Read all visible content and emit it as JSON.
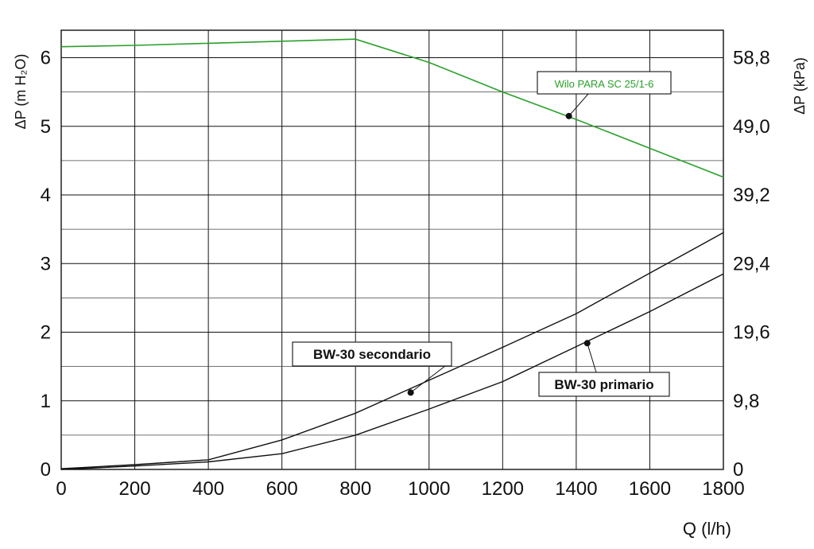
{
  "chart_data": {
    "type": "line",
    "xlabel": "Q (l/h)",
    "ylabel_left": "ΔP (m H₂O)",
    "ylabel_right": "ΔP (kPa)",
    "xlim": [
      0,
      1800
    ],
    "ylim": [
      0,
      6.4
    ],
    "x_ticks": [
      "0",
      "200",
      "400",
      "600",
      "800",
      "1000",
      "1200",
      "1400",
      "1600",
      "1800"
    ],
    "y_ticks_left": [
      "0",
      "1",
      "2",
      "3",
      "4",
      "5",
      "6"
    ],
    "y_ticks_right": [
      "0",
      "9,8",
      "19,6",
      "29,4",
      "39,2",
      "49,0",
      "58,8"
    ],
    "grid": true,
    "series": [
      {
        "name": "Wilo PARA SC 25/1-6",
        "color": "#2aa02a",
        "points": [
          [
            0,
            6.16
          ],
          [
            200,
            6.18
          ],
          [
            400,
            6.21
          ],
          [
            600,
            6.24
          ],
          [
            800,
            6.27
          ],
          [
            1000,
            5.93
          ],
          [
            1200,
            5.5
          ],
          [
            1400,
            5.1
          ],
          [
            1600,
            4.68
          ],
          [
            1800,
            4.26
          ]
        ],
        "marker": [
          1380,
          5.15
        ]
      },
      {
        "name": "BW-30 secondario",
        "color": "#111111",
        "points": [
          [
            0,
            0.01
          ],
          [
            200,
            0.07
          ],
          [
            400,
            0.14
          ],
          [
            600,
            0.43
          ],
          [
            800,
            0.82
          ],
          [
            1000,
            1.3
          ],
          [
            1200,
            1.78
          ],
          [
            1400,
            2.27
          ],
          [
            1600,
            2.86
          ],
          [
            1800,
            3.45
          ]
        ],
        "marker": [
          950,
          1.12
        ]
      },
      {
        "name": "BW-30 primario",
        "color": "#111111",
        "points": [
          [
            0,
            0.0
          ],
          [
            200,
            0.05
          ],
          [
            400,
            0.11
          ],
          [
            600,
            0.23
          ],
          [
            800,
            0.5
          ],
          [
            1000,
            0.88
          ],
          [
            1200,
            1.28
          ],
          [
            1400,
            1.79
          ],
          [
            1600,
            2.3
          ],
          [
            1800,
            2.85
          ]
        ],
        "marker": [
          1430,
          1.84
        ]
      }
    ]
  }
}
